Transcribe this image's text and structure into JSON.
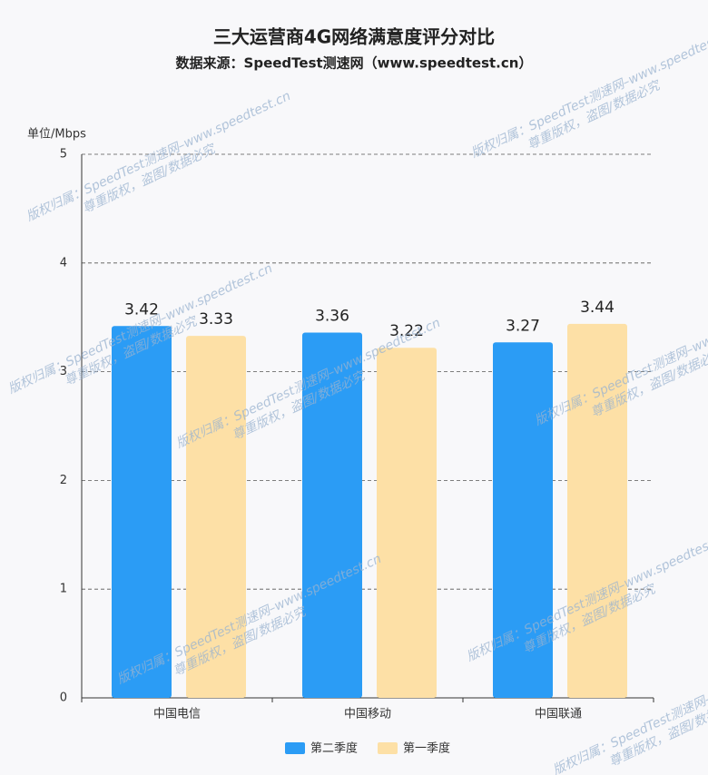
{
  "chart_data": {
    "type": "bar",
    "title": "三大运营商4G网络满意度评分对比",
    "subtitle": "数据来源：SpeedTest测速网（www.speedtest.cn）",
    "y_label": "单位/Mbps",
    "categories": [
      "中国电信",
      "中国移动",
      "中国联通"
    ],
    "series": [
      {
        "name": "第二季度",
        "color": "#2b9cf5",
        "values": [
          3.42,
          3.36,
          3.27
        ]
      },
      {
        "name": "第一季度",
        "color": "#fde0a6",
        "values": [
          3.33,
          3.22,
          3.44
        ]
      }
    ],
    "ylim": [
      0,
      5
    ],
    "yticks": [
      0,
      1,
      2,
      3,
      4,
      5
    ],
    "grid": true,
    "watermark": [
      "版权归属：SpeedTest测速网–www.speedtest.cn",
      "尊重版权，盗图/数据必究"
    ]
  }
}
